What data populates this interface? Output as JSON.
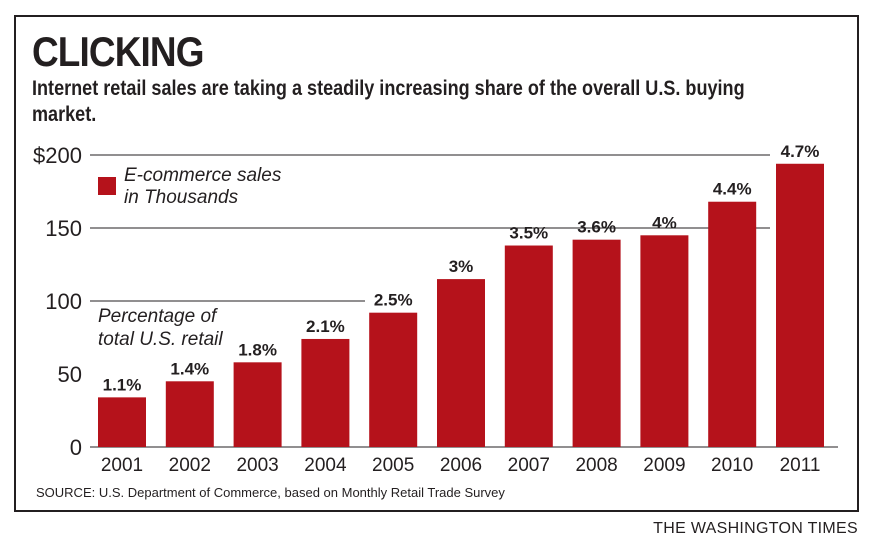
{
  "header": {
    "title": "CLICKING",
    "subtitle": "Internet retail sales are taking a steadily increasing share of the overall U.S. buying market."
  },
  "footer": {
    "source": "SOURCE: U.S. Department of Commerce, based on Monthly Retail Trade Survey",
    "brand": "THE WASHINGTON TIMES"
  },
  "colors": {
    "bar": "#b5121b",
    "text": "#231f20",
    "grid": "#231f20"
  },
  "chart_data": {
    "type": "bar",
    "categories": [
      "2001",
      "2002",
      "2003",
      "2004",
      "2005",
      "2006",
      "2007",
      "2008",
      "2009",
      "2010",
      "2011"
    ],
    "values": [
      34,
      45,
      58,
      74,
      92,
      115,
      138,
      142,
      145,
      168,
      194
    ],
    "data_labels": [
      "1.1%",
      "1.4%",
      "1.8%",
      "2.1%",
      "2.5%",
      "3%",
      "3.5%",
      "3.6%",
      "4%",
      "4.4%",
      "4.7%"
    ],
    "ylim": [
      0,
      200
    ],
    "yticks": [
      0,
      50,
      100,
      150,
      200
    ],
    "ytick_labels": [
      "0",
      "50",
      "100",
      "150",
      "$200"
    ],
    "grid": true,
    "legend": {
      "label_line1": "E-commerce sales",
      "label_line2": "in Thousands",
      "placement": "top-left"
    },
    "annotation": {
      "line1": "Percentage of",
      "line2": "total U.S. retail"
    }
  }
}
